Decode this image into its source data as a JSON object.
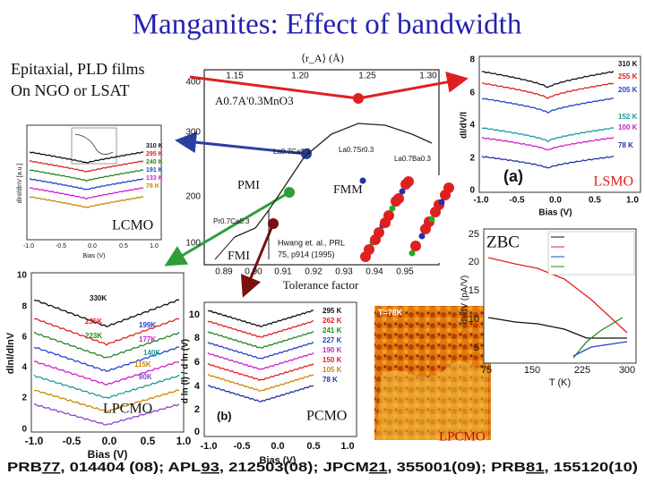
{
  "title": "Manganites: Effect of bandwidth",
  "intro": [
    "Epitaxial, PLD films",
    "On NGO or LSAT"
  ],
  "phase_diagram": {
    "top_axis_label": "⟨r_A⟩ (Å)",
    "top_ticks": [
      "1.15",
      "1.20",
      "1.25",
      "1.30"
    ],
    "y_ticks": [
      "400",
      "300",
      "200",
      "100"
    ],
    "x_ticks": [
      "0.89",
      "0.90",
      "0.91",
      "0.92",
      "0.93",
      "0.94",
      "0.95"
    ],
    "x_label": "Tolerance factor",
    "formula": "A0.7A'0.3MnO3",
    "regions": [
      "PMI",
      "FMM",
      "FMI"
    ],
    "compounds": [
      "La0.7Ca0.3",
      "La0.7Sr0.3",
      "La0.7Ba0.3",
      "Pr0.7Ca0.3"
    ],
    "citation": [
      "Hwang et. al., PRL",
      "75, p914 (1995)"
    ]
  },
  "lsmo_panel": {
    "label": "LSMO",
    "panel": "(a)",
    "x_label": "Bias (V)",
    "y_label": "dI/dV/I",
    "x_ticks": [
      "-1.0",
      "-0.5",
      "0.0",
      "0.5",
      "1.0"
    ],
    "y_ticks": [
      "8",
      "6",
      "4",
      "2",
      "0"
    ],
    "temperatures": [
      "310 K",
      "255 K",
      "205 K",
      "152 K",
      "100 K",
      "78 K"
    ]
  },
  "lcmo_panel": {
    "label": "LCMO",
    "x_label": "Bias (V)",
    "y_label": "dlnI/dlnV [a.u.]",
    "x_ticks": [
      "-1.0",
      "-0.5",
      "0.0",
      "0.5",
      "1.0"
    ],
    "temperatures": [
      "310 K",
      "295 K",
      "240 K",
      "191 K",
      "133 K",
      "78 K"
    ]
  },
  "lpcmo_panel": {
    "label": "LPCMO",
    "x_label": "Bias (V)",
    "y_label": "dlnI/dlnV",
    "x_ticks": [
      "-1.0",
      "-0.5",
      "0.0",
      "0.5",
      "1.0"
    ],
    "y_ticks": [
      "10",
      "8",
      "6",
      "4",
      "2",
      "0"
    ],
    "temperatures": [
      "330K",
      "235K",
      "223K",
      "199K",
      "177K",
      "140K",
      "115K",
      "80K"
    ]
  },
  "pcmo_panel": {
    "label": "PCMO",
    "panel": "(b)",
    "x_label": "Bias (V)",
    "y_label": "d ln (I) / d ln (V)",
    "x_ticks": [
      "-1.0",
      "-0.5",
      "0.0",
      "0.5",
      "1.0"
    ],
    "y_ticks": [
      "10",
      "8",
      "6",
      "4",
      "2",
      "0"
    ],
    "temperatures": [
      "295 K",
      "262 K",
      "241 K",
      "227 K",
      "190 K",
      "150 K",
      "105 K",
      "78 K"
    ]
  },
  "image_panel": {
    "label": "LPCMO",
    "note": "T=78K"
  },
  "zbc_panel": {
    "label": "ZBC",
    "x_label": "T (K)",
    "y_label": "dI/dV (pA/V)",
    "x_ticks": [
      "75",
      "150",
      "225",
      "300"
    ],
    "y_ticks": [
      "25",
      "20",
      "15",
      "10",
      "5"
    ]
  },
  "references": [
    "PRB",
    "77",
    ", 014404 (08); APL",
    "93",
    ", 212503(08); JPCM",
    "21",
    ", 355001(09); PRB",
    "81",
    ", 155120(10)"
  ]
}
